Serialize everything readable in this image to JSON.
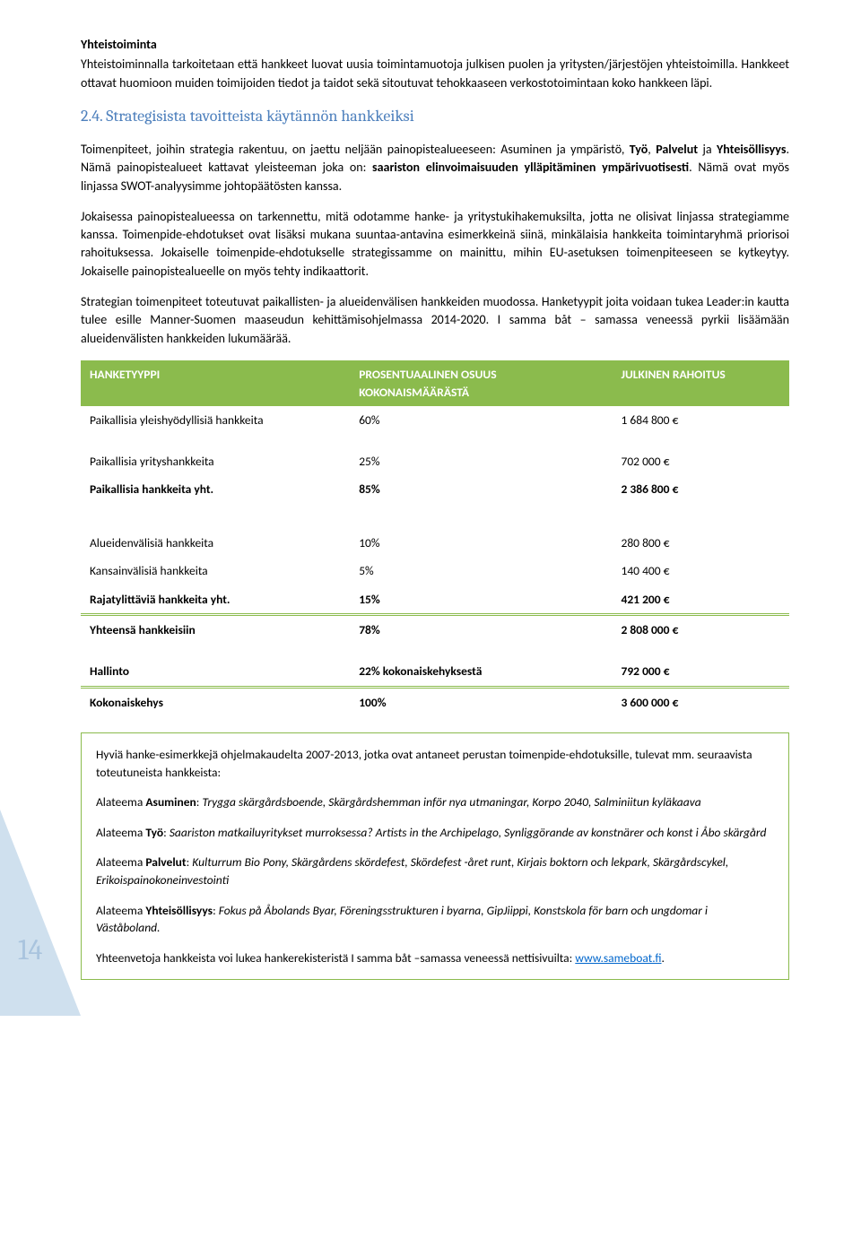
{
  "section1": {
    "title": "Yhteistoiminta",
    "p1": "Yhteistoiminnalla tarkoitetaan että hankkeet luovat uusia toimintamuotoja julkisen puolen ja yritysten/järjestöjen yhteistoimilla. Hankkeet ottavat huomioon muiden toimijoiden tiedot ja taidot sekä sitoutuvat tehokkaaseen verkostotoimintaan koko hankkeen läpi."
  },
  "heading24": "2.4. Strategisista tavoitteista käytännön hankkeiksi",
  "para2_a": "Toimenpiteet, joihin strategia rakentuu, on jaettu neljään painopistealueeseen: Asuminen ja ympäristö",
  "para2_b": ", ",
  "para2_c": "Työ",
  "para2_d": ", ",
  "para2_e": "Palvelut",
  "para2_f": " ja ",
  "para2_g": "Yhteisöllisyys",
  "para2_h": ". Nämä painopistealueet kattavat yleisteeman joka on: ",
  "para2_i": "saariston elinvoimaisuuden ylläpitäminen ympärivuotisesti",
  "para2_j": ". Nämä ovat myös linjassa SWOT-analyysimme johtopäätösten kanssa.",
  "para3": "Jokaisessa painopistealueessa on tarkennettu, mitä odotamme hanke- ja yritystukihakemuksilta, jotta ne olisivat linjassa strategiamme kanssa. Toimenpide-ehdotukset ovat lisäksi mukana suuntaa-antavina esimerkkeinä siinä, minkälaisia hankkeita toimintaryhmä priorisoi rahoituksessa. Jokaiselle toimenpide-ehdotukselle strategissamme on mainittu, mihin EU-asetuksen toimenpiteeseen se kytkeytyy. Jokaiselle painopistealueelle on myös tehty indikaattorit.",
  "para4": "Strategian toimenpiteet toteutuvat paikallisten- ja alueidenvälisen hankkeiden muodossa. Hanketyypit joita voidaan tukea Leader:in kautta tulee esille Manner-Suomen maaseudun kehittämisohjelmassa 2014-2020. I samma båt – samassa veneessä pyrkii lisäämään alueidenvälisten hankkeiden lukumäärää.",
  "table": {
    "head": {
      "c1": "HANKETYYPPI",
      "c2a": "PROSENTUAALINEN OSUUS",
      "c2b": "KOKONAISMÄÄRÄSTÄ",
      "c3": "JULKINEN RAHOITUS"
    },
    "r1": {
      "c1": "Paikallisia yleishyödyllisiä hankkeita",
      "c2": "60%",
      "c3": "1 684 800 €"
    },
    "r2": {
      "c1": "Paikallisia yrityshankkeita",
      "c2": "25%",
      "c3": "702 000 €"
    },
    "r3": {
      "c1": "Paikallisia hankkeita yht.",
      "c2": "85%",
      "c3": "2 386 800 €"
    },
    "r4": {
      "c1": "Alueidenvälisiä hankkeita",
      "c2": "10%",
      "c3": "280 800 €"
    },
    "r5": {
      "c1": "Kansainvälisiä hankkeita",
      "c2": "5%",
      "c3": "140 400 €"
    },
    "r6": {
      "c1": "Rajatylittäviä hankkeita yht.",
      "c2": "15%",
      "c3": "421 200 €"
    },
    "r7": {
      "c1": "Yhteensä hankkeisiin",
      "c2": "78%",
      "c3": "2 808 000 €"
    },
    "r8": {
      "c1": "Hallinto",
      "c2": "22% kokonaiskehyksestä",
      "c3": "792 000 €"
    },
    "r9": {
      "c1": "Kokonaiskehys",
      "c2": "100%",
      "c3": "3 600 000 €"
    }
  },
  "box": {
    "p1": "Hyviä hanke-esimerkkejä ohjelmakaudelta 2007-2013, jotka ovat antaneet perustan toimenpide-ehdotuksille, tulevat mm. seuraavista toteutuneista hankkeista:",
    "p2a": "Alateema ",
    "p2b": "Asuminen",
    "p2c": ": ",
    "p2d": "Trygga skärgårdsboende, Skärgårdshemman inför nya utmaningar, Korpo 2040, Salminiitun kyläkaava",
    "p3a": "Alateema ",
    "p3b": "Työ",
    "p3c": ": ",
    "p3d": "Saariston matkailuyritykset murroksessa? Artists in the Archipelago, Synliggörande av konstnärer och konst i Åbo skärgård",
    "p4a": "Alateema ",
    "p4b": "Palvelut",
    "p4c": ": ",
    "p4d": "Kulturrum Bio Pony, Skärgårdens skördefest, Skördefest -året runt, Kirjais boktorn och lekpark, Skärgårdscykel, Erikoispainokoneinvestointi",
    "p5a": "Alateema ",
    "p5b": "Yhteisöllisyys",
    "p5c": ": ",
    "p5d": "Fokus på Åbolands Byar, Föreningsstrukturen i byarna, GipJiippi, Konstskola för barn och ungdomar i Väståboland.",
    "p6a": "Yhteenvetoja hankkeista voi lukea hankerekisteristä I samma båt –samassa veneessä nettisivuilta: ",
    "p6b": "www.sameboat.fi",
    "p6c": "."
  },
  "pageNumber": "14"
}
